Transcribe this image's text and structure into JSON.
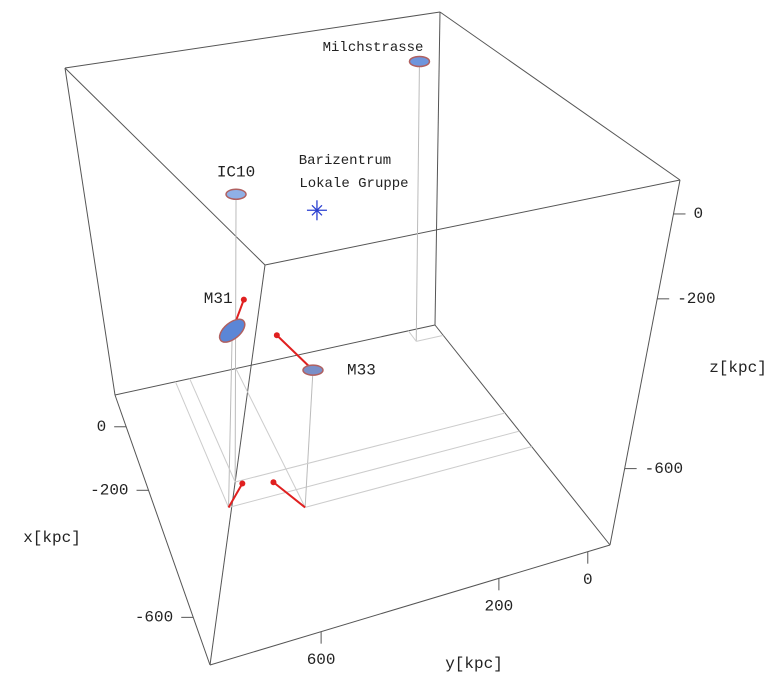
{
  "chart_data": {
    "type": "scatter3d",
    "xlabel": "x[kpc]",
    "ylabel": "y[kpc]",
    "zlabel": "z[kpc]",
    "xlim": [
      -750,
      100
    ],
    "ylim": [
      -50,
      850
    ],
    "zlim": [
      -780,
      80
    ],
    "xticks": [
      0,
      -200,
      -600
    ],
    "yticks": [
      0,
      200,
      600
    ],
    "zticks": [
      0,
      -200,
      -600
    ],
    "points": [
      {
        "name": "Milchstrasse",
        "x": 60,
        "y": 25,
        "z": -20,
        "color": "#6f95dc"
      },
      {
        "name": "M31",
        "x": -310,
        "y": 680,
        "z": -355,
        "color": "#5b86d6",
        "vector_end": [
          -250,
          625,
          -330
        ]
      },
      {
        "name": "M33",
        "x": -370,
        "y": 510,
        "z": -450,
        "color": "#7a8fc8",
        "vector_end": [
          -270,
          553,
          -420
        ]
      },
      {
        "name": "IC10",
        "x": -240,
        "y": 640,
        "z": -75,
        "color": "#8fb0e6"
      }
    ],
    "vector_color": "#e02020",
    "barycenter": {
      "label": [
        "Barizentrum",
        "Lokale Gruppe"
      ],
      "x": -70,
      "y": 355,
      "z": -275,
      "color": "#2a3fd0"
    }
  }
}
